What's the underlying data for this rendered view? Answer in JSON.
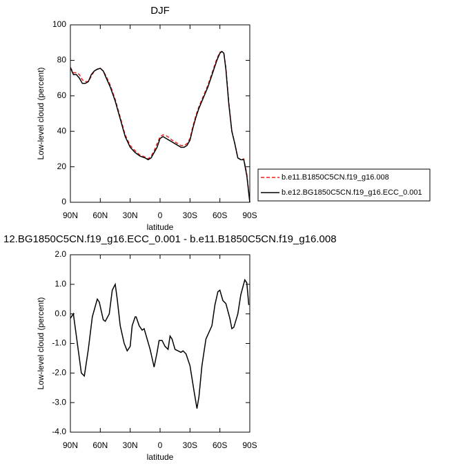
{
  "chart_data": [
    {
      "type": "line",
      "title": "DJF",
      "xlabel": "latitude",
      "ylabel": "Low-level cloud (percent)",
      "x": [
        90,
        87,
        84,
        81,
        78,
        75,
        72,
        69,
        66,
        63,
        60,
        57,
        54,
        50,
        45,
        40,
        35,
        30,
        25,
        20,
        15,
        12,
        9,
        6,
        3,
        0,
        -3,
        -6,
        -9,
        -12,
        -15,
        -18,
        -21,
        -24,
        -27,
        -30,
        -33,
        -36,
        -39,
        -42,
        -45,
        -48,
        -51,
        -54,
        -57,
        -60,
        -62,
        -64,
        -66,
        -69,
        -72,
        -75,
        -78,
        -81,
        -84,
        -87,
        -90
      ],
      "series": [
        {
          "name": "b.e11.B1850C5CN.f19_g16.008",
          "color": "#e8201e",
          "dash": true,
          "values": [
            76,
            73,
            73,
            72,
            69,
            68,
            68,
            71,
            74,
            75,
            75.5,
            74,
            71,
            66,
            58,
            48,
            38,
            32,
            29,
            26.5,
            25.5,
            24.5,
            26,
            29,
            33,
            37,
            38,
            37.5,
            36.5,
            35,
            34,
            33,
            32,
            32,
            33,
            36,
            43,
            49,
            54,
            58,
            62,
            66,
            71,
            76,
            81,
            84.5,
            85,
            84,
            76,
            56,
            40,
            33,
            25,
            24,
            24.5,
            16,
            0
          ]
        },
        {
          "name": "b.e12.BG1850C5CN.f19_g16.ECC_0.001",
          "color": "#000000",
          "dash": false,
          "values": [
            76,
            72,
            72,
            70,
            67,
            67,
            68,
            72,
            74,
            75,
            75.5,
            74,
            70,
            65,
            57,
            47,
            37,
            31,
            28,
            26,
            25,
            24,
            25,
            28,
            31,
            36,
            37,
            36,
            35,
            34,
            33,
            32,
            31,
            31,
            32,
            35,
            42,
            48,
            53,
            57,
            61,
            65,
            70,
            75,
            80,
            84,
            85,
            84,
            75,
            55,
            40,
            33,
            25,
            24,
            24,
            15,
            0
          ]
        }
      ],
      "xlim": [
        90,
        -90
      ],
      "xticks": [
        {
          "value": 90,
          "label": "90N"
        },
        {
          "value": 60,
          "label": "60N"
        },
        {
          "value": 30,
          "label": "30N"
        },
        0,
        {
          "value": -30,
          "label": "30S"
        },
        {
          "value": -60,
          "label": "60S"
        },
        {
          "value": -90,
          "label": "90S"
        }
      ],
      "ylim": [
        0,
        100
      ],
      "yticks": [
        0,
        20,
        40,
        60,
        80,
        100
      ],
      "legend": "right"
    },
    {
      "type": "line",
      "title": "12.BG1850C5CN.f19_g16.ECC_0.001 - b.e11.B1850C5CN.f19_g16.008",
      "xlabel": "latitude",
      "ylabel": "Low-level cloud (percent)",
      "x": [
        90,
        87,
        83,
        79,
        76,
        72,
        68,
        63,
        61,
        57,
        55,
        51,
        48,
        45,
        43,
        40,
        36,
        33,
        30,
        28,
        25,
        24,
        21,
        18,
        16,
        13,
        10,
        6,
        3,
        1,
        -2,
        -5,
        -8,
        -10,
        -12,
        -15,
        -18,
        -21,
        -23,
        -26,
        -30,
        -34,
        -37,
        -39,
        -42,
        -46,
        -48,
        -52,
        -55,
        -58,
        -60,
        -63,
        -66,
        -70,
        -72,
        -74,
        -78,
        -81,
        -85,
        -87,
        -89
      ],
      "values": [
        -0.15,
        0,
        -1,
        -2,
        -2.1,
        -1.2,
        -0.1,
        0.5,
        0.4,
        -0.2,
        -0.25,
        0,
        0.8,
        1.0,
        0.5,
        -0.4,
        -1.0,
        -1.25,
        -1.1,
        -0.4,
        -0.1,
        -0.1,
        -0.4,
        -0.55,
        -0.5,
        -0.85,
        -1.2,
        -1.8,
        -1.3,
        -0.9,
        -0.9,
        -1.1,
        -1.2,
        -0.75,
        -0.85,
        -1.2,
        -1.25,
        -1.3,
        -1.25,
        -1.35,
        -1.75,
        -2.6,
        -3.2,
        -2.8,
        -1.75,
        -0.85,
        -0.7,
        -0.4,
        0.3,
        0.75,
        0.8,
        0.45,
        0.35,
        -0.15,
        -0.5,
        -0.45,
        0,
        0.65,
        1.15,
        1.05,
        0.3
      ],
      "color": "#000000",
      "xlim": [
        90,
        -90
      ],
      "xticks": [
        {
          "value": 90,
          "label": "90N"
        },
        {
          "value": 60,
          "label": "60N"
        },
        {
          "value": 30,
          "label": "30N"
        },
        0,
        {
          "value": -30,
          "label": "30S"
        },
        {
          "value": -60,
          "label": "60S"
        },
        {
          "value": -90,
          "label": "90S"
        }
      ],
      "ylim": [
        -4,
        2
      ],
      "yticks": [
        {
          "value": -4,
          "label": "-4.0"
        },
        {
          "value": -3,
          "label": "-3.0"
        },
        {
          "value": -2,
          "label": "-2.0"
        },
        {
          "value": -1,
          "label": "-1.0"
        },
        {
          "value": 0,
          "label": "0.0"
        },
        {
          "value": 1,
          "label": "1.0"
        },
        {
          "value": 2,
          "label": "2.0"
        }
      ]
    }
  ]
}
